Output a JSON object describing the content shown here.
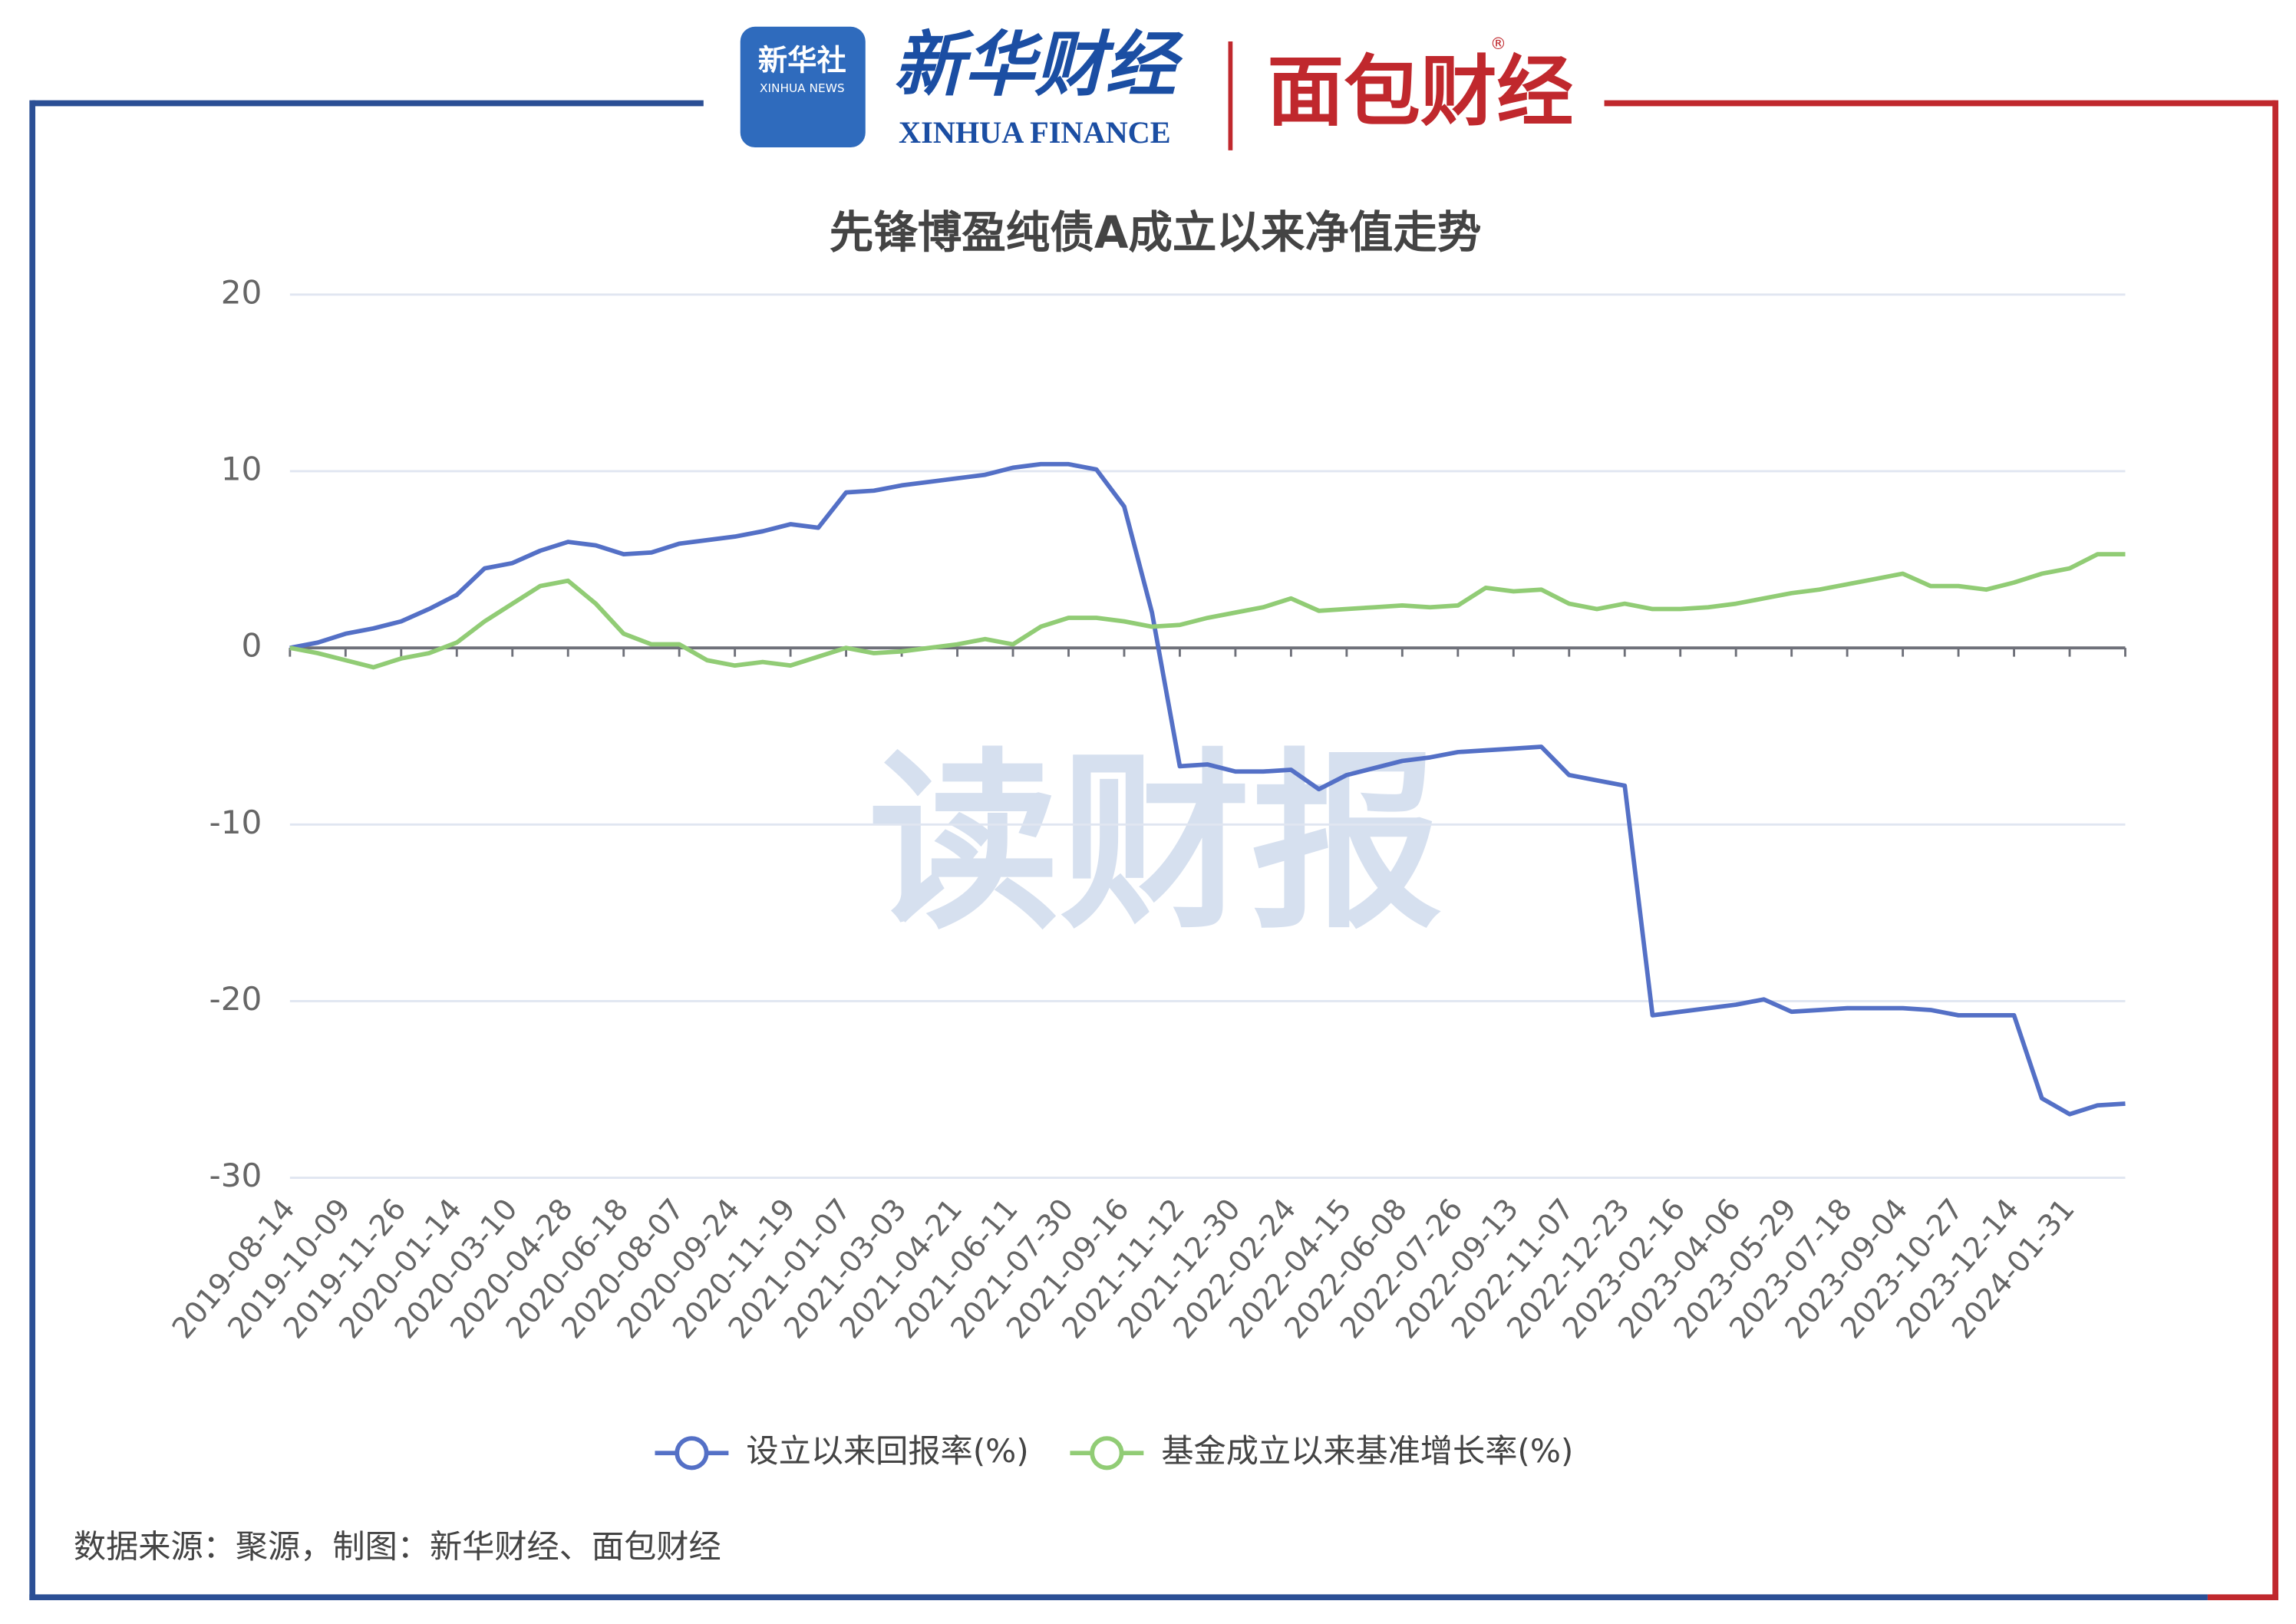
{
  "header": {
    "badge": "新华社",
    "badge_en": "XINHUA NEWS",
    "brand": "新华财经",
    "brand_en": "XINHUA FINANCE",
    "partner": "面包财经",
    "registered": "®"
  },
  "watermark": "读财报",
  "source": "数据来源：聚源，制图：新华财经、面包财经",
  "chart_data": {
    "type": "line",
    "title": "先锋博盈纯债A成立以来净值走势",
    "categories": [
      "2019-08-14",
      null,
      "2019-10-09",
      null,
      "2019-11-26",
      null,
      "2020-01-14",
      null,
      "2020-03-10",
      null,
      "2020-04-28",
      null,
      "2020-06-18",
      null,
      "2020-08-07",
      null,
      "2020-09-24",
      null,
      "2020-11-19",
      null,
      "2021-01-07",
      null,
      "2021-03-03",
      null,
      "2021-04-21",
      null,
      "2021-06-11",
      null,
      "2021-07-30",
      null,
      "2021-09-16",
      null,
      "2021-11-12",
      null,
      "2021-12-30",
      null,
      "2022-02-24",
      null,
      "2022-04-15",
      null,
      "2022-06-08",
      null,
      "2022-07-26",
      null,
      "2022-09-13",
      null,
      "2022-11-07",
      null,
      "2022-12-23",
      null,
      "2023-02-16",
      null,
      "2023-04-06",
      null,
      "2023-05-29",
      null,
      "2023-07-18",
      null,
      "2023-09-04",
      null,
      "2023-10-27",
      null,
      "2023-12-14",
      null,
      "2024-01-31",
      null,
      null
    ],
    "series": [
      {
        "name": "设立以来回报率(%)",
        "color": "#5470c6",
        "values": [
          0,
          0.3,
          0.8,
          1.1,
          1.5,
          2.2,
          3.0,
          4.5,
          4.8,
          5.5,
          6.0,
          5.8,
          5.3,
          5.4,
          5.9,
          6.1,
          6.3,
          6.6,
          7.0,
          6.8,
          8.8,
          8.9,
          9.2,
          9.4,
          9.6,
          9.8,
          10.2,
          10.4,
          10.4,
          10.1,
          8.0,
          2.0,
          -6.7,
          -6.6,
          -7.0,
          -7.0,
          -6.9,
          -8.0,
          -7.2,
          -6.8,
          -6.4,
          -6.2,
          -5.9,
          -5.8,
          -5.7,
          -5.6,
          -7.2,
          -7.5,
          -7.8,
          -20.8,
          -20.6,
          -20.4,
          -20.2,
          -19.9,
          -20.6,
          -20.5,
          -20.4,
          -20.4,
          -20.4,
          -20.5,
          -20.8,
          -20.8,
          -20.8,
          -25.5,
          -26.4,
          -25.9,
          -25.8
        ]
      },
      {
        "name": "基金成立以来基准增长率(%)",
        "color": "#91cc75",
        "values": [
          0,
          -0.3,
          -0.7,
          -1.1,
          -0.6,
          -0.3,
          0.3,
          1.5,
          2.5,
          3.5,
          3.8,
          2.5,
          0.8,
          0.2,
          0.2,
          -0.7,
          -1.0,
          -0.8,
          -1.0,
          -0.5,
          0.0,
          -0.3,
          -0.2,
          0.0,
          0.2,
          0.5,
          0.2,
          1.2,
          1.7,
          1.7,
          1.5,
          1.2,
          1.3,
          1.7,
          2.0,
          2.3,
          2.8,
          2.1,
          2.2,
          2.3,
          2.4,
          2.3,
          2.4,
          3.4,
          3.2,
          3.3,
          2.5,
          2.2,
          2.5,
          2.2,
          2.2,
          2.3,
          2.5,
          2.8,
          3.1,
          3.3,
          3.6,
          3.9,
          4.2,
          3.5,
          3.5,
          3.3,
          3.7,
          4.2,
          4.5,
          5.3,
          5.3
        ]
      }
    ],
    "ylim": [
      -30,
      20
    ],
    "yticks": [
      -30,
      -20,
      -10,
      0,
      10,
      20
    ],
    "grid": true,
    "legend": "bottom"
  }
}
